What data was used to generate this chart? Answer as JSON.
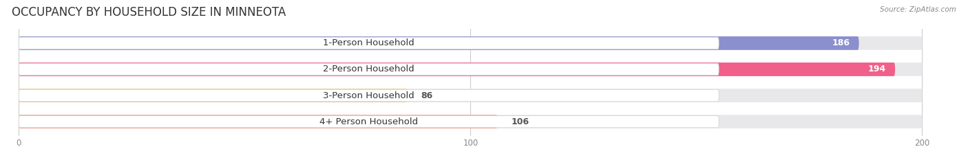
{
  "title": "OCCUPANCY BY HOUSEHOLD SIZE IN MINNEOTA",
  "source": "Source: ZipAtlas.com",
  "categories": [
    "1-Person Household",
    "2-Person Household",
    "3-Person Household",
    "4+ Person Household"
  ],
  "values": [
    186,
    194,
    86,
    106
  ],
  "bar_colors": [
    "#8B8FCE",
    "#F0608A",
    "#F5C896",
    "#F0A090"
  ],
  "bg_color": "#E8E8EA",
  "xlim": [
    -2,
    208
  ],
  "xticks": [
    0,
    100,
    200
  ],
  "title_fontsize": 12,
  "label_fontsize": 9.5,
  "value_fontsize": 9,
  "bar_height": 0.52,
  "figsize": [
    14.06,
    2.33
  ],
  "dpi": 100
}
